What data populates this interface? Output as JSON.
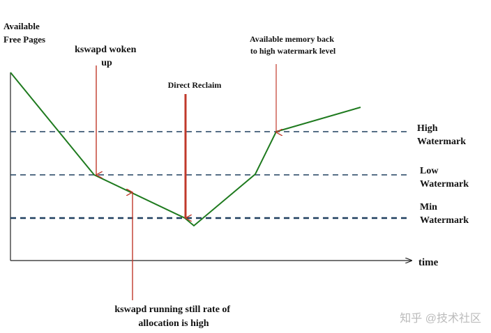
{
  "y_axis_label_line1": "Available",
  "y_axis_label_line2": "Free Pages",
  "x_axis_label": "time",
  "watermarks": {
    "high": {
      "line1": "High",
      "line2": "Watermark"
    },
    "low": {
      "line1": "Low",
      "line2": "Watermark"
    },
    "min": {
      "line1": "Min",
      "line2": "Watermark"
    }
  },
  "annotations": {
    "kswapd_woken": {
      "line1": "kswapd woken",
      "line2": "up"
    },
    "direct_reclaim": {
      "line1": "Direct Reclaim"
    },
    "memory_back": {
      "line1": "Available memory back",
      "line2": "to high watermark level"
    },
    "kswapd_running": {
      "line1": "kswapd running still rate of",
      "line2": "allocation is high"
    }
  },
  "footer_watermark": "知乎 @技术社区",
  "colors": {
    "curve": "#1e7a1e",
    "threshold": "#1f3f5f",
    "arrow": "#c0392b",
    "axis": "#222222"
  }
}
